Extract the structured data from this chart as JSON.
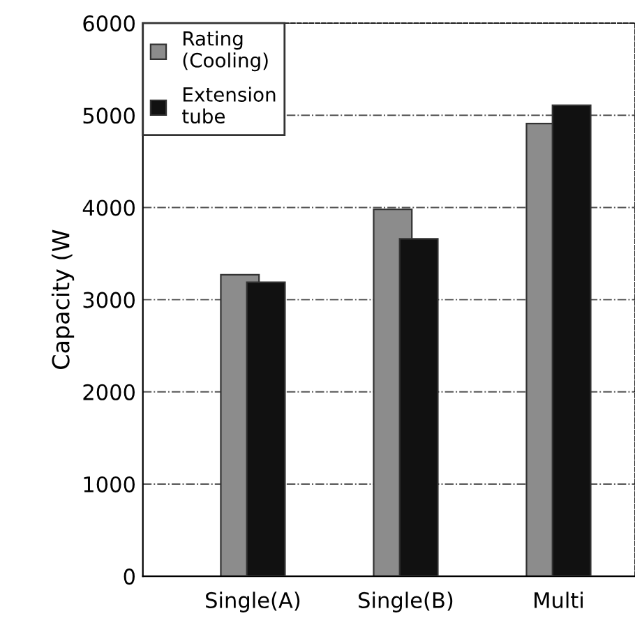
{
  "chart_data": {
    "type": "bar",
    "ylabel": "Capacity (W",
    "categories": [
      "Single(A)",
      "Single(B)",
      "Multi"
    ],
    "series": [
      {
        "name": "Rating\n(Cooling)",
        "color": "#8c8c8c",
        "values": [
          3270,
          3980,
          4910
        ]
      },
      {
        "name": "Extension\ntube",
        "color": "#111111",
        "values": [
          3190,
          3660,
          5110
        ]
      }
    ],
    "ylim": [
      0,
      6000
    ],
    "yticks": [
      0,
      1000,
      2000,
      3000,
      4000,
      5000,
      6000
    ],
    "grid": "y",
    "legend": "top left"
  }
}
